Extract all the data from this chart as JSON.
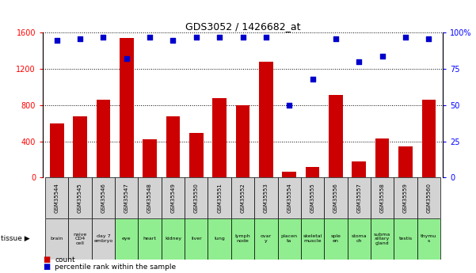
{
  "title": "GDS3052 / 1426682_at",
  "samples": [
    "GSM35544",
    "GSM35545",
    "GSM35546",
    "GSM35547",
    "GSM35548",
    "GSM35549",
    "GSM35550",
    "GSM35551",
    "GSM35552",
    "GSM35553",
    "GSM35554",
    "GSM35555",
    "GSM35556",
    "GSM35557",
    "GSM35558",
    "GSM35559",
    "GSM35560"
  ],
  "tissues": [
    "brain",
    "naive\nCD4\ncell",
    "day 7\nembryо",
    "eye",
    "heart",
    "kidney",
    "liver",
    "lung",
    "lymph\nnode",
    "ovar\ny",
    "placen\nta",
    "skeletal\nmuscle",
    "sple\nen",
    "stoma\nch",
    "subma\nxillary\ngland",
    "testis",
    "thymu\ns"
  ],
  "tissue_colors": [
    "#d3d3d3",
    "#d3d3d3",
    "#d3d3d3",
    "#90EE90",
    "#90EE90",
    "#90EE90",
    "#90EE90",
    "#90EE90",
    "#90EE90",
    "#90EE90",
    "#90EE90",
    "#90EE90",
    "#90EE90",
    "#90EE90",
    "#90EE90",
    "#90EE90",
    "#90EE90"
  ],
  "counts": [
    600,
    680,
    860,
    1540,
    420,
    680,
    490,
    880,
    800,
    1280,
    60,
    120,
    910,
    180,
    430,
    340,
    860
  ],
  "percentiles": [
    95,
    96,
    97,
    82,
    97,
    95,
    97,
    97,
    97,
    97,
    50,
    68,
    96,
    80,
    84,
    97,
    96
  ],
  "bar_color": "#CC0000",
  "dot_color": "#0000CC",
  "ylim_left": [
    0,
    1600
  ],
  "ylim_right": [
    0,
    100
  ],
  "yticks_left": [
    0,
    400,
    800,
    1200,
    1600
  ],
  "yticks_right": [
    0,
    25,
    50,
    75,
    100
  ],
  "gsm_row_color": "#d3d3d3",
  "background": "#ffffff"
}
